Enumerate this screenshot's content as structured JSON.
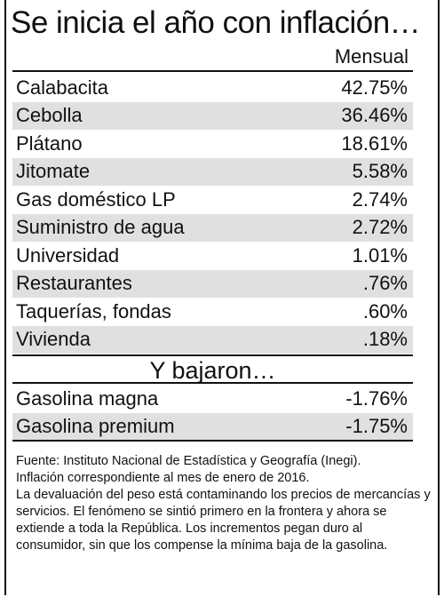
{
  "title": "Se inicia el año con inflación…",
  "column_header": "Mensual",
  "increases": [
    {
      "label": "Calabacita",
      "value": "42.75%"
    },
    {
      "label": "Cebolla",
      "value": "36.46%"
    },
    {
      "label": "Plátano",
      "value": "18.61%"
    },
    {
      "label": "Jitomate",
      "value": "5.58%"
    },
    {
      "label": "Gas doméstico LP",
      "value": "2.74%"
    },
    {
      "label": "Suministro de agua",
      "value": "2.72%"
    },
    {
      "label": "Universidad",
      "value": "1.01%"
    },
    {
      "label": "Restaurantes",
      "value": ".76%"
    },
    {
      "label": "Taquerías, fondas",
      "value": ".60%"
    },
    {
      "label": "Vivienda",
      "value": ".18%"
    }
  ],
  "subheading": "Y bajaron…",
  "decreases": [
    {
      "label": "Gasolina magna",
      "value": "-1.76%"
    },
    {
      "label": "Gasolina premium",
      "value": "-1.75%"
    }
  ],
  "footnote": {
    "source": "Fuente: Instituto Nacional de Estadística y Geografía (Inegi).",
    "period": "Inflación correspondiente al mes de enero de 2016.",
    "body": "La devaluación del peso está contaminando los precios de mercancías y servicios. El fenómeno se sintió primero en la frontera y ahora se extiende a toda la República. Los incrementos pegan duro al consumidor, sin que los compense la mínima baja de la gasolina."
  }
}
